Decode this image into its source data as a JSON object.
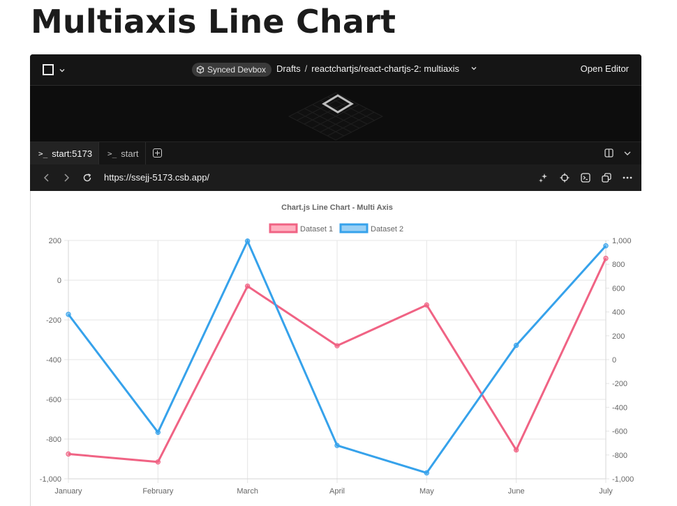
{
  "page": {
    "title": "Multiaxis Line Chart"
  },
  "sandbox": {
    "synced_label": "Synced Devbox",
    "breadcrumb_root": "Drafts",
    "breadcrumb_sep": "/",
    "breadcrumb_path": "reactchartjs/react-chartjs-2: multiaxis",
    "open_editor": "Open Editor",
    "tabs": [
      {
        "label": "start:5173",
        "glyph": ">_"
      },
      {
        "label": "start",
        "glyph": ">_"
      }
    ],
    "url": "https://ssejj-5173.csb.app/"
  },
  "colors": {
    "dataset1": "#f06384",
    "dataset2": "#36a2eb"
  },
  "chart_data": {
    "type": "line",
    "title": "Chart.js Line Chart - Multi Axis",
    "categories": [
      "January",
      "February",
      "March",
      "April",
      "May",
      "June",
      "July"
    ],
    "series": [
      {
        "name": "Dataset 1",
        "axis": "y",
        "color": "#f06384",
        "values": [
          -875,
          -915,
          -30,
          -330,
          -125,
          -855,
          110
        ]
      },
      {
        "name": "Dataset 2",
        "axis": "y1",
        "color": "#36a2eb",
        "values": [
          380,
          -610,
          995,
          -720,
          -950,
          120,
          955
        ]
      }
    ],
    "y": {
      "min": -1000,
      "max": 200,
      "step": 200,
      "ticks": [
        "200",
        "0",
        "-200",
        "-400",
        "-600",
        "-800",
        "-1,000"
      ]
    },
    "y1": {
      "min": -1000,
      "max": 1000,
      "step": 200,
      "ticks": [
        "1,000",
        "800",
        "600",
        "400",
        "200",
        "0",
        "-200",
        "-400",
        "-600",
        "-800",
        "-1,000"
      ]
    },
    "grid": true,
    "legend": "top-center"
  }
}
